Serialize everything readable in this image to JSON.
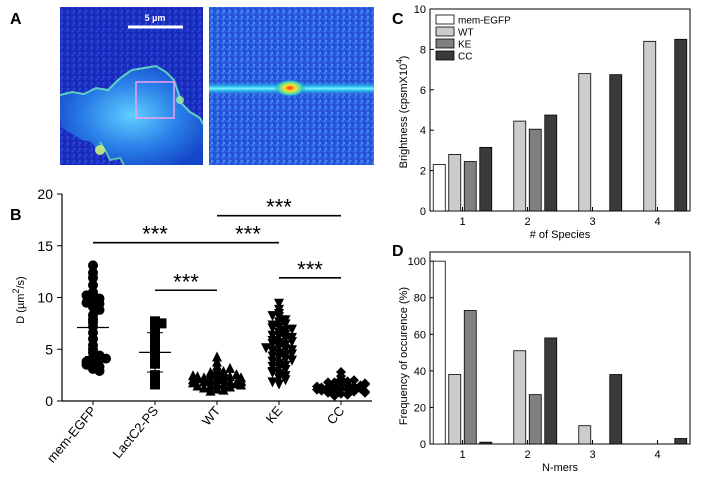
{
  "panels": {
    "A": "A",
    "B": "B",
    "C": "C",
    "D": "D"
  },
  "panel_a": {
    "scalebar_label": "5 µm"
  },
  "chart_data": [
    {
      "id": "B",
      "type": "scatter",
      "ylabel_main": "D (µm",
      "ylabel_sup": "2",
      "ylabel_end": "/s)",
      "ylim": [
        0,
        20
      ],
      "yticks": [
        0,
        5,
        10,
        15,
        20
      ],
      "categories": [
        "mem-EGFP",
        "LactC2-PS",
        "WT",
        "KE",
        "CC"
      ],
      "markers": [
        "circle",
        "square",
        "triangle",
        "triangle-down",
        "diamond"
      ],
      "means": [
        7.1,
        4.7,
        2.1,
        5.3,
        1.4
      ],
      "sd": [
        2.8,
        1.9,
        0.7,
        2.1,
        0.6
      ],
      "points": [
        [
          13.1,
          12.4,
          11.9,
          11.2,
          10.5,
          10.1,
          9.9,
          9.6,
          9.4,
          9.1,
          8.8,
          8.3,
          7.9,
          7.6,
          7.2,
          6.6,
          6.0,
          5.4,
          5.0,
          4.7,
          4.4,
          4.2,
          4.0,
          3.8,
          3.6,
          3.3,
          3.1,
          2.9,
          9.5,
          10.2,
          4.1,
          3.5
        ],
        [
          7.7,
          7.5,
          6.9,
          6.5,
          5.8,
          4.6,
          4.2,
          3.6,
          2.5,
          1.6,
          5.1
        ],
        [
          4.3,
          3.8,
          3.4,
          3.1,
          2.9,
          2.7,
          2.6,
          2.5,
          2.4,
          2.3,
          2.2,
          2.1,
          2.0,
          1.9,
          1.9,
          1.8,
          1.7,
          1.6,
          1.5,
          1.4,
          1.3,
          1.2,
          1.1,
          2.2,
          2.0,
          1.8,
          2.6,
          2.4,
          1.7,
          1.5,
          2.3,
          1.9,
          2.1,
          1.6,
          2.8,
          3.2,
          1.0,
          2.5
        ],
        [
          9.4,
          8.8,
          8.4,
          8.1,
          7.8,
          7.6,
          7.4,
          7.1,
          6.8,
          6.6,
          6.4,
          6.2,
          6.0,
          5.8,
          5.6,
          5.4,
          5.2,
          5.0,
          4.8,
          4.6,
          4.4,
          4.2,
          4.0,
          3.8,
          3.6,
          3.4,
          3.2,
          3.0,
          2.8,
          2.6,
          2.4,
          2.2,
          2.0,
          1.8,
          1.6,
          5.5,
          6.1,
          4.9,
          7.0,
          3.9,
          5.7,
          6.9,
          4.3,
          3.3,
          7.3,
          2.7,
          5.1,
          6.3,
          4.5,
          8.2
        ],
        [
          2.8,
          2.4,
          2.1,
          1.9,
          1.8,
          1.7,
          1.6,
          1.5,
          1.4,
          1.3,
          1.2,
          1.1,
          1.0,
          0.9,
          0.8,
          0.7,
          0.6,
          0.5,
          1.5,
          1.3,
          1.6,
          1.2,
          1.4,
          1.0,
          0.9,
          1.7,
          1.1,
          0.8,
          2.0,
          1.8
        ]
      ],
      "significance": [
        {
          "from": 0,
          "to": 2,
          "y": 15.3,
          "label": "***"
        },
        {
          "from": 1,
          "to": 2,
          "y": 10.7,
          "label": "***"
        },
        {
          "from": 2,
          "to": 4,
          "y": 17.9,
          "label": "***"
        },
        {
          "from": 2,
          "to": 3,
          "y": 15.3,
          "label": "***"
        },
        {
          "from": 3,
          "to": 4,
          "y": 11.9,
          "label": "***"
        }
      ]
    },
    {
      "id": "C",
      "type": "bar",
      "ylabel_main": "Brightness (cpsmX10",
      "ylabel_sup": "4",
      "ylabel_end": ")",
      "xlabel": "# of Species",
      "ylim": [
        0,
        10
      ],
      "yticks": [
        0,
        2,
        4,
        6,
        8,
        10
      ],
      "categories": [
        "1",
        "2",
        "3",
        "4"
      ],
      "series": [
        {
          "name": "mem-EGFP",
          "color": "#ffffff",
          "values": [
            2.3,
            null,
            null,
            null
          ]
        },
        {
          "name": "WT",
          "color": "#cccccc",
          "values": [
            2.8,
            4.45,
            6.8,
            8.4
          ]
        },
        {
          "name": "KE",
          "color": "#808080",
          "values": [
            2.45,
            4.05,
            null,
            null
          ]
        },
        {
          "name": "CC",
          "color": "#3a3a3a",
          "values": [
            3.15,
            4.75,
            6.75,
            8.5
          ]
        }
      ],
      "legend": "top-left"
    },
    {
      "id": "D",
      "type": "bar",
      "ylabel": "Frequency of occurence (%)",
      "xlabel": "N-mers",
      "ylim": [
        0,
        105
      ],
      "yticks": [
        0,
        20,
        40,
        60,
        80,
        100
      ],
      "categories": [
        "1",
        "2",
        "3",
        "4"
      ],
      "series": [
        {
          "name": "mem-EGFP",
          "color": "#ffffff",
          "values": [
            100,
            null,
            null,
            null
          ]
        },
        {
          "name": "WT",
          "color": "#cccccc",
          "values": [
            38,
            51,
            10,
            null
          ]
        },
        {
          "name": "KE",
          "color": "#808080",
          "values": [
            73,
            27,
            null,
            null
          ]
        },
        {
          "name": "CC",
          "color": "#3a3a3a",
          "values": [
            1,
            58,
            38,
            3
          ]
        }
      ]
    }
  ]
}
